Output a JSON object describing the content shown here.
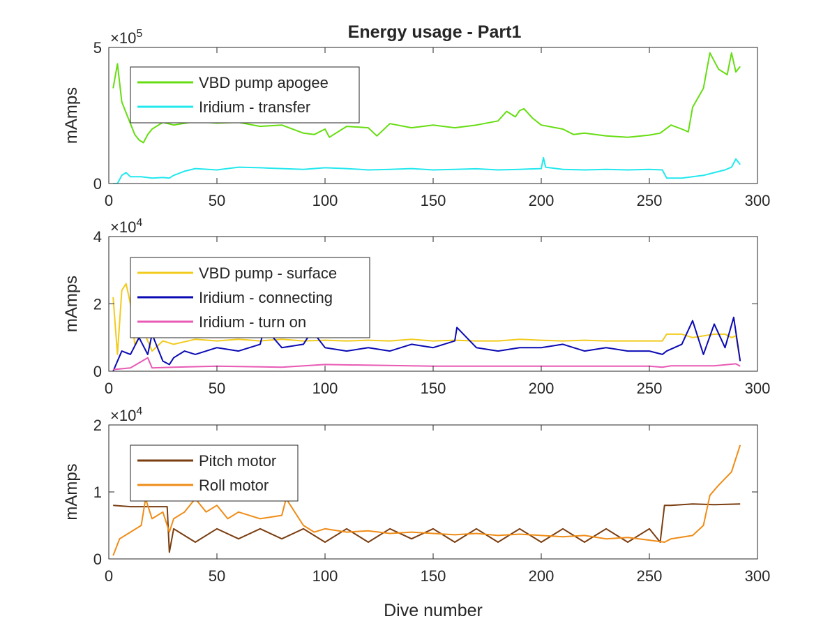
{
  "title": "Energy usage - Part1",
  "chart_data": [
    {
      "type": "line",
      "title": "Energy usage - Part1",
      "xlabel": "",
      "ylabel": "mAmps",
      "xlim": [
        0,
        300
      ],
      "ylim": [
        0,
        500000
      ],
      "xticks": [
        "0",
        "50",
        "100",
        "150",
        "200",
        "250",
        "300"
      ],
      "yticks": [
        "0",
        "5"
      ],
      "exponent": {
        "base": "×10",
        "power": "5"
      },
      "legend_position": "top-left",
      "series": [
        {
          "name": "VBD pump apogee",
          "color": "#66dd11",
          "x": [
            2,
            4,
            6,
            8,
            10,
            12,
            14,
            16,
            18,
            20,
            25,
            30,
            40,
            50,
            60,
            70,
            80,
            90,
            95,
            100,
            102,
            110,
            120,
            124,
            130,
            140,
            150,
            160,
            170,
            180,
            184,
            188,
            190,
            192,
            196,
            200,
            210,
            215,
            220,
            230,
            240,
            250,
            255,
            260,
            265,
            268,
            270,
            275,
            278,
            282,
            286,
            288,
            290,
            292
          ],
          "values": [
            350000,
            440000,
            300000,
            260000,
            220000,
            180000,
            160000,
            150000,
            180000,
            200000,
            225000,
            215000,
            228000,
            222000,
            225000,
            210000,
            215000,
            185000,
            180000,
            200000,
            170000,
            210000,
            205000,
            175000,
            220000,
            205000,
            215000,
            205000,
            215000,
            230000,
            265000,
            245000,
            268000,
            275000,
            240000,
            215000,
            200000,
            180000,
            185000,
            175000,
            170000,
            178000,
            185000,
            215000,
            200000,
            190000,
            280000,
            350000,
            480000,
            420000,
            400000,
            480000,
            410000,
            430000
          ]
        },
        {
          "name": "Iridium - transfer",
          "color": "#22e8ee",
          "x": [
            2,
            4,
            6,
            8,
            10,
            15,
            20,
            25,
            28,
            30,
            35,
            40,
            50,
            60,
            70,
            80,
            90,
            100,
            110,
            120,
            130,
            140,
            150,
            160,
            170,
            180,
            190,
            200,
            201,
            202,
            210,
            220,
            230,
            240,
            250,
            256,
            258,
            265,
            270,
            275,
            280,
            285,
            288,
            290,
            292
          ],
          "values": [
            0,
            0,
            30000,
            40000,
            25000,
            25000,
            20000,
            22000,
            20000,
            30000,
            45000,
            55000,
            50000,
            60000,
            58000,
            55000,
            52000,
            58000,
            55000,
            50000,
            52000,
            55000,
            50000,
            52000,
            54000,
            50000,
            52000,
            55000,
            95000,
            60000,
            52000,
            50000,
            52000,
            50000,
            52000,
            50000,
            20000,
            20000,
            25000,
            30000,
            40000,
            50000,
            60000,
            90000,
            70000
          ]
        }
      ]
    },
    {
      "type": "line",
      "xlabel": "",
      "ylabel": "mAmps",
      "xlim": [
        0,
        300
      ],
      "ylim": [
        0,
        40000
      ],
      "xticks": [
        "0",
        "50",
        "100",
        "150",
        "200",
        "250",
        "300"
      ],
      "yticks": [
        "0",
        "2",
        "4"
      ],
      "exponent": {
        "base": "×10",
        "power": "4"
      },
      "legend_position": "top-left",
      "series": [
        {
          "name": "VBD pump - surface",
          "color": "#f2cb1d",
          "x": [
            2,
            4,
            6,
            8,
            10,
            12,
            16,
            20,
            25,
            30,
            40,
            50,
            60,
            70,
            80,
            90,
            100,
            110,
            120,
            130,
            140,
            150,
            160,
            170,
            180,
            190,
            200,
            210,
            220,
            230,
            240,
            250,
            256,
            258,
            265,
            270,
            280,
            285,
            288,
            290,
            292
          ],
          "values": [
            22000,
            5000,
            24000,
            26000,
            20000,
            8000,
            12000,
            6000,
            9000,
            8000,
            9500,
            9000,
            9500,
            9000,
            9500,
            9000,
            9200,
            9000,
            9200,
            9000,
            9500,
            9000,
            9200,
            9000,
            9000,
            9500,
            9200,
            9000,
            9200,
            9000,
            9000,
            9000,
            9000,
            11000,
            11000,
            10000,
            11000,
            11000,
            10000,
            10500,
            3000
          ]
        },
        {
          "name": "Iridium - connecting",
          "color": "#0a0ab4",
          "x": [
            2,
            6,
            10,
            14,
            18,
            20,
            25,
            28,
            30,
            35,
            40,
            50,
            60,
            70,
            72,
            80,
            90,
            94,
            100,
            110,
            120,
            130,
            140,
            150,
            160,
            161,
            170,
            180,
            190,
            200,
            210,
            220,
            230,
            240,
            250,
            256,
            258,
            265,
            270,
            275,
            280,
            285,
            289,
            292
          ],
          "values": [
            0,
            6000,
            5000,
            10000,
            5000,
            11000,
            3000,
            2000,
            4000,
            6000,
            5000,
            7000,
            6000,
            8000,
            13000,
            7000,
            8000,
            12000,
            7000,
            6000,
            7000,
            6000,
            8000,
            7000,
            9000,
            13000,
            7000,
            6000,
            7000,
            7000,
            8000,
            6000,
            7000,
            6000,
            6000,
            5000,
            6000,
            8000,
            15000,
            5000,
            14000,
            7000,
            16000,
            3000
          ]
        },
        {
          "name": "Iridium - turn on",
          "color": "#e85ab4",
          "x": [
            2,
            10,
            18,
            20,
            30,
            50,
            80,
            100,
            150,
            200,
            250,
            256,
            260,
            280,
            290,
            292
          ],
          "values": [
            500,
            1000,
            4000,
            1000,
            1200,
            1500,
            1200,
            2000,
            1500,
            1500,
            1500,
            1200,
            1600,
            1600,
            2200,
            1500
          ]
        }
      ]
    },
    {
      "type": "line",
      "xlabel": "Dive number",
      "ylabel": "mAmps",
      "xlim": [
        0,
        300
      ],
      "ylim": [
        0,
        20000
      ],
      "xticks": [
        "0",
        "50",
        "100",
        "150",
        "200",
        "250",
        "300"
      ],
      "yticks": [
        "0",
        "1",
        "2"
      ],
      "exponent": {
        "base": "×10",
        "power": "4"
      },
      "legend_position": "top-left",
      "series": [
        {
          "name": "Pitch motor",
          "color": "#7a3d10",
          "x": [
            2,
            10,
            20,
            27,
            28,
            30,
            40,
            50,
            60,
            70,
            80,
            90,
            100,
            110,
            120,
            130,
            140,
            150,
            160,
            170,
            180,
            190,
            200,
            210,
            220,
            230,
            240,
            250,
            255,
            257,
            260,
            270,
            280,
            292
          ],
          "values": [
            8000,
            7800,
            7800,
            7800,
            1000,
            4500,
            2500,
            4500,
            3000,
            4500,
            3000,
            4500,
            2500,
            4500,
            2500,
            4500,
            3000,
            4500,
            2500,
            4500,
            2500,
            4500,
            2500,
            4500,
            2500,
            4500,
            2500,
            4500,
            2500,
            8000,
            8000,
            8200,
            8100,
            8200
          ]
        },
        {
          "name": "Roll motor",
          "color": "#ef8c17",
          "x": [
            2,
            5,
            10,
            15,
            17,
            20,
            25,
            28,
            30,
            35,
            40,
            45,
            50,
            55,
            60,
            70,
            80,
            82,
            90,
            95,
            100,
            110,
            120,
            130,
            140,
            150,
            160,
            170,
            180,
            190,
            200,
            210,
            220,
            230,
            240,
            250,
            257,
            260,
            270,
            275,
            278,
            282,
            288,
            292
          ],
          "values": [
            500,
            3000,
            4000,
            5000,
            9000,
            6000,
            7000,
            4000,
            6000,
            7000,
            9000,
            7000,
            8000,
            6000,
            7000,
            6000,
            6500,
            9000,
            5000,
            4000,
            4500,
            4000,
            4200,
            3800,
            4000,
            3800,
            3600,
            3800,
            3500,
            3700,
            3500,
            3300,
            3500,
            3000,
            3200,
            2800,
            2500,
            3000,
            3500,
            5000,
            9500,
            11000,
            13000,
            17000
          ]
        }
      ]
    }
  ]
}
